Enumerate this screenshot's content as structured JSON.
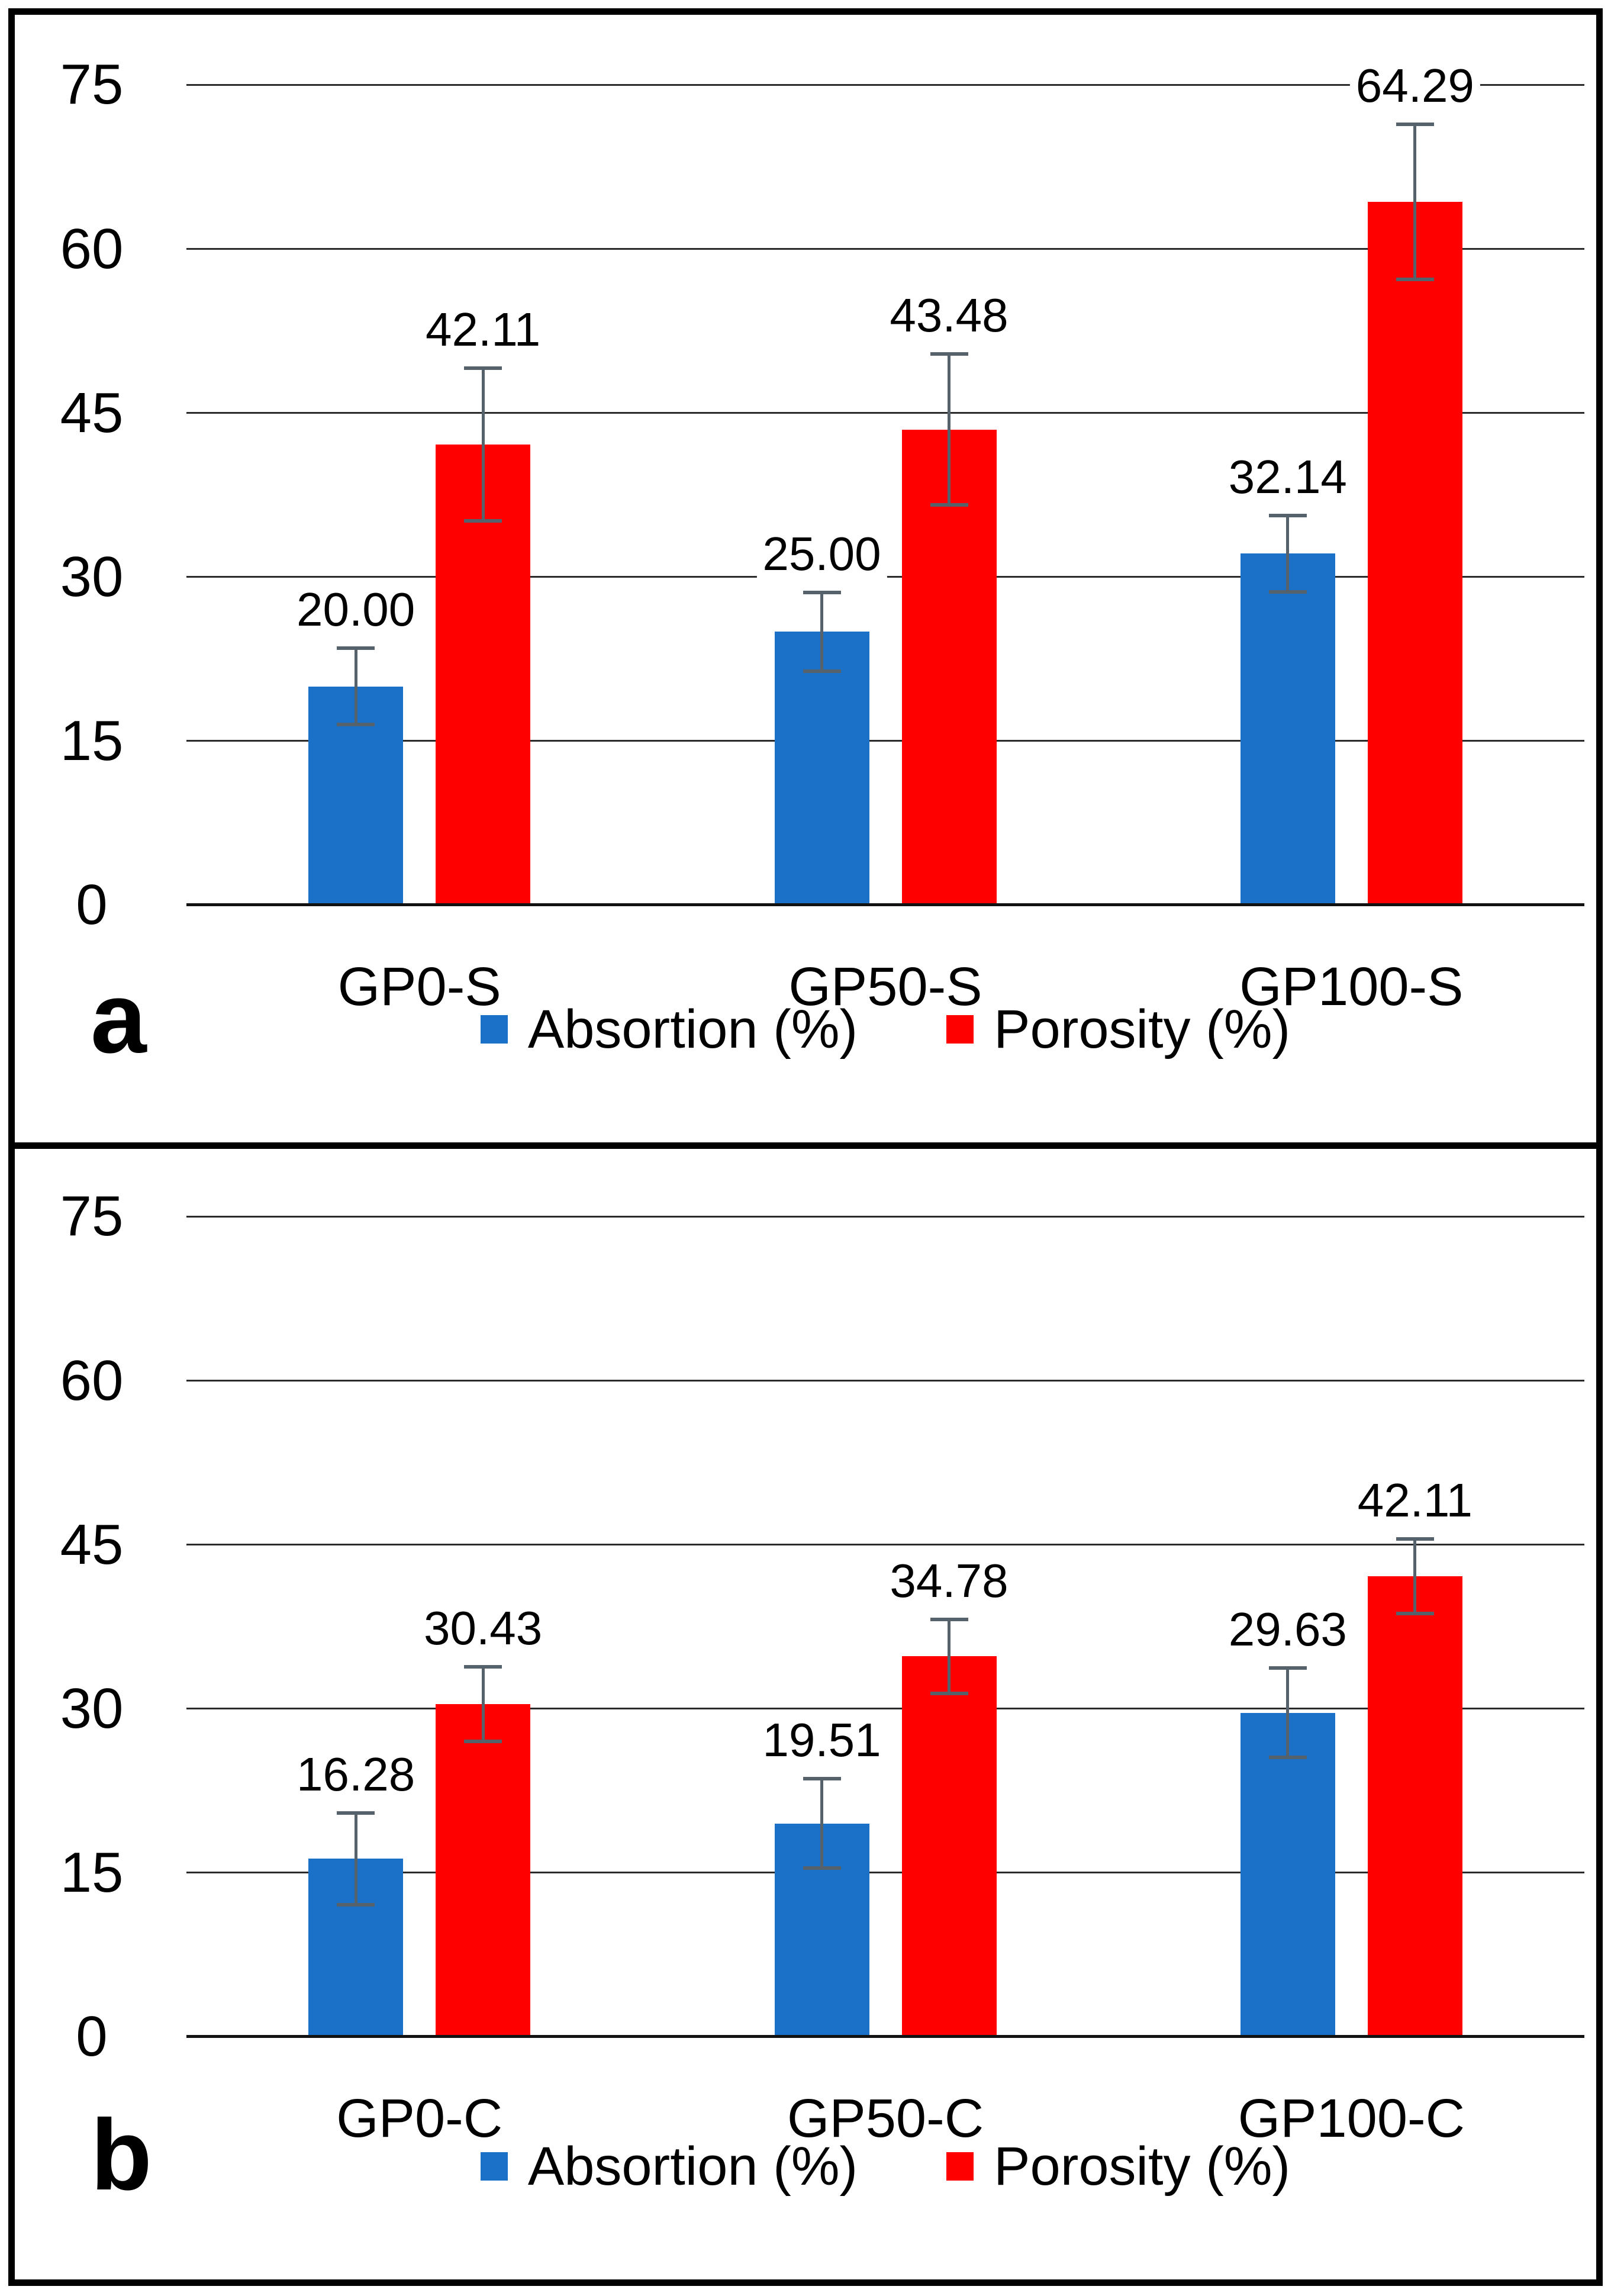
{
  "figure": {
    "background": "#ffffff",
    "border_color": "#000000"
  },
  "colors": {
    "absorption": "#1B70C8",
    "porosity": "#FF0000",
    "error_bar": "#55626B",
    "gridline": "#2b2b2b",
    "axis_line": "#121212",
    "text": "#000000"
  },
  "chart_data": [
    {
      "type": "bar",
      "panel_label": "a",
      "categories": [
        "GP0-S",
        "GP50-S",
        "GP100-S"
      ],
      "series": [
        {
          "name": "Absortion (%)",
          "color_key": "absorption",
          "values": [
            20.0,
            25.0,
            32.14
          ],
          "labels": [
            "20.00",
            "25.00",
            "32.14"
          ],
          "errors": [
            3.5,
            3.6,
            3.5
          ]
        },
        {
          "name": "Porosity (%)",
          "color_key": "porosity",
          "values": [
            42.11,
            43.48,
            64.29
          ],
          "labels": [
            "42.11",
            "43.48",
            "64.29"
          ],
          "errors": [
            7.0,
            6.9,
            7.1
          ]
        }
      ],
      "y_ticks": [
        0,
        15,
        30,
        45,
        60,
        75
      ],
      "ylim": [
        0,
        80
      ],
      "grid": true,
      "legend_position": "bottom"
    },
    {
      "type": "bar",
      "panel_label": "b",
      "categories": [
        "GP0-C",
        "GP50-C",
        "GP100-C"
      ],
      "series": [
        {
          "name": "Absortion (%)",
          "color_key": "absorption",
          "values": [
            16.28,
            19.51,
            29.63
          ],
          "labels": [
            "16.28",
            "19.51",
            "29.63"
          ],
          "errors": [
            4.2,
            4.1,
            4.1
          ]
        },
        {
          "name": "Porosity (%)",
          "color_key": "porosity",
          "values": [
            30.43,
            34.78,
            42.11
          ],
          "labels": [
            "30.43",
            "34.78",
            "42.11"
          ],
          "errors": [
            3.4,
            3.4,
            3.4
          ]
        }
      ],
      "y_ticks": [
        0,
        15,
        30,
        45,
        60,
        75
      ],
      "ylim": [
        0,
        80
      ],
      "grid": true,
      "legend_position": "bottom"
    }
  ]
}
